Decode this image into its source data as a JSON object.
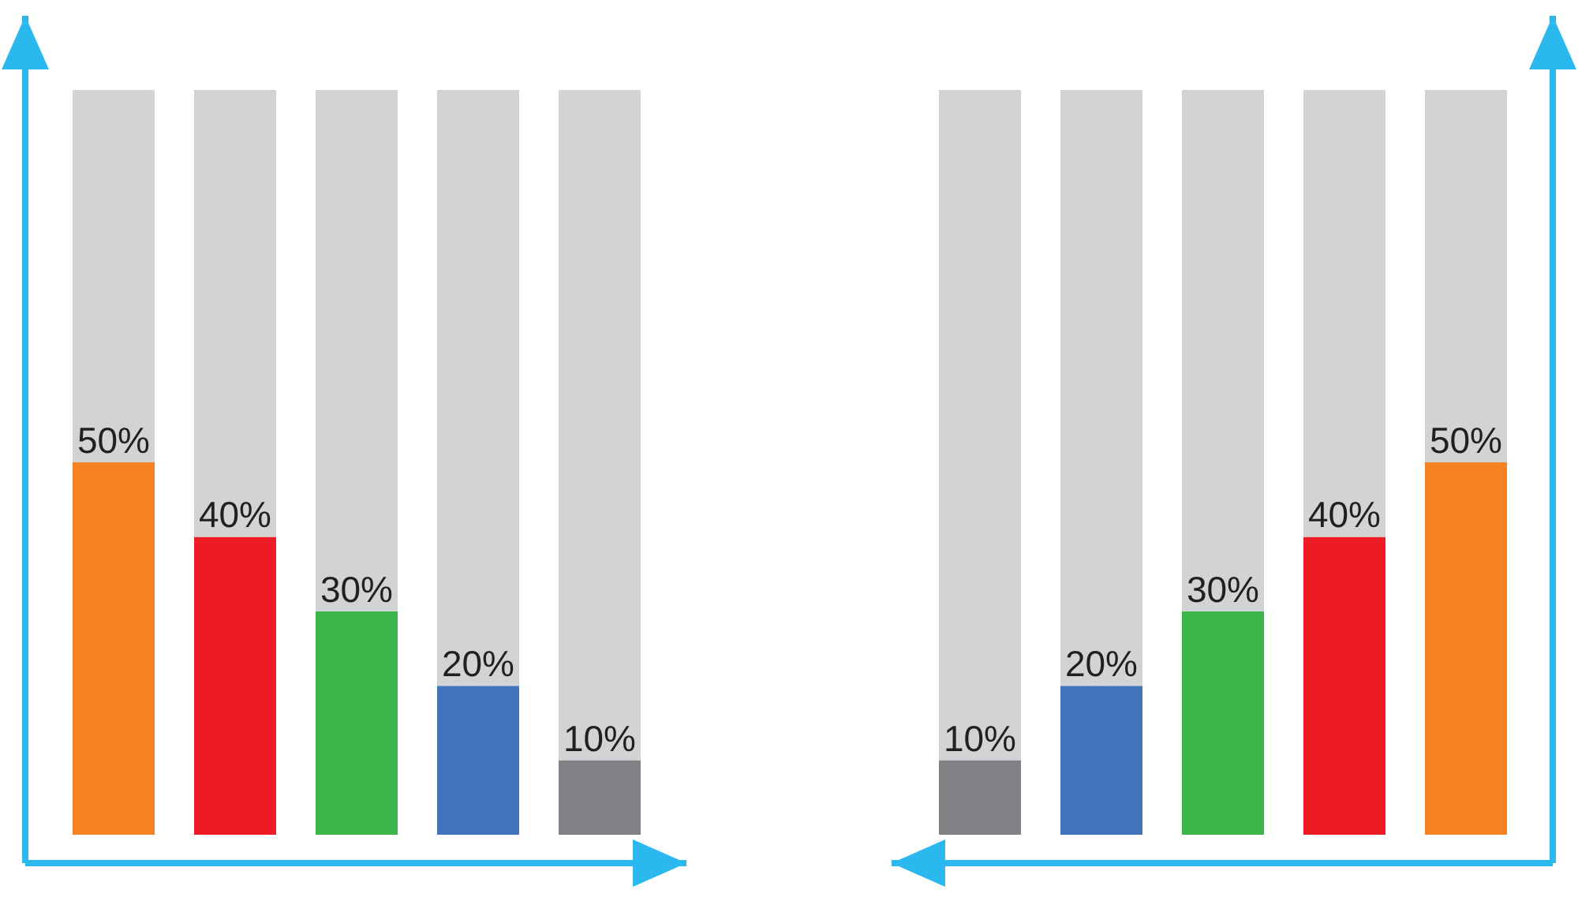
{
  "chart_data": [
    {
      "type": "bar",
      "stacked": true,
      "categories": [
        null,
        null,
        null,
        null,
        null
      ],
      "series": [
        {
          "values": [
            50,
            40,
            30,
            20,
            10
          ],
          "colors": [
            "#f58220",
            "#ed1c24",
            "#39b54a",
            "#4274bc",
            "#808285"
          ],
          "value_labels": [
            "50%",
            "40%",
            "30%",
            "20%",
            "10%"
          ]
        },
        {
          "values": [
            50,
            60,
            70,
            80,
            90
          ],
          "color": "#d1d3d4"
        }
      ],
      "tick_labels": false
    },
    {
      "type": "bar",
      "stacked": true,
      "categories": [
        null,
        null,
        null,
        null,
        null
      ],
      "series": [
        {
          "values": [
            10,
            20,
            30,
            40,
            50
          ],
          "colors": [
            "#808285",
            "#4274bc",
            "#39b54a",
            "#ed1c24",
            "#f58220"
          ],
          "value_labels": [
            "10%",
            "20%",
            "30%",
            "40%",
            "50%"
          ]
        },
        {
          "values": [
            90,
            80,
            70,
            60,
            50
          ],
          "color": "#d1d3d4"
        }
      ],
      "tick_labels": false
    }
  ]
}
